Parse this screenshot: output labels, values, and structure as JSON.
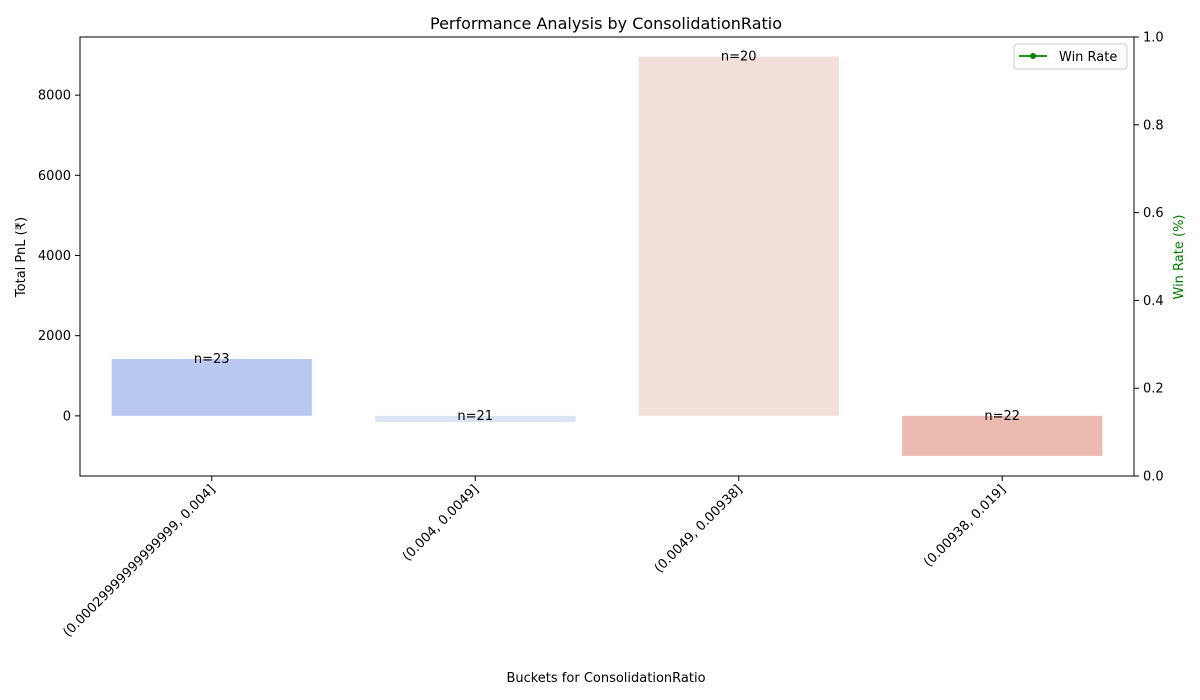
{
  "chart_data": {
    "type": "bar",
    "title": "Performance Analysis by ConsolidationRatio",
    "xlabel": "Buckets for ConsolidationRatio",
    "ylabel": "Total PnL (₹)",
    "y2label": "Win Rate (%)",
    "categories": [
      "(0.00029999999999999, 0.004]",
      "(0.004, 0.0049]",
      "(0.0049, 0.00938]",
      "(0.00938, 0.019]"
    ],
    "values": [
      1420,
      -150,
      8960,
      -1000
    ],
    "counts": [
      "n=23",
      "n=21",
      "n=20",
      "n=22"
    ],
    "bar_colors": [
      "#b9c9f2",
      "#d9e4f4",
      "#f2e0d8",
      "#ebbbb1"
    ],
    "ylim": [
      -1500,
      9450
    ],
    "yticks": [
      0,
      2000,
      4000,
      6000,
      8000
    ],
    "y2lim": [
      0,
      1
    ],
    "y2ticks": [
      "0.0",
      "0.2",
      "0.4",
      "0.6",
      "0.8",
      "1.0"
    ],
    "y2label_color": "#008000",
    "legend": {
      "position": "top-right",
      "entries": [
        {
          "label": "Win Rate",
          "color": "#008000"
        }
      ]
    }
  }
}
